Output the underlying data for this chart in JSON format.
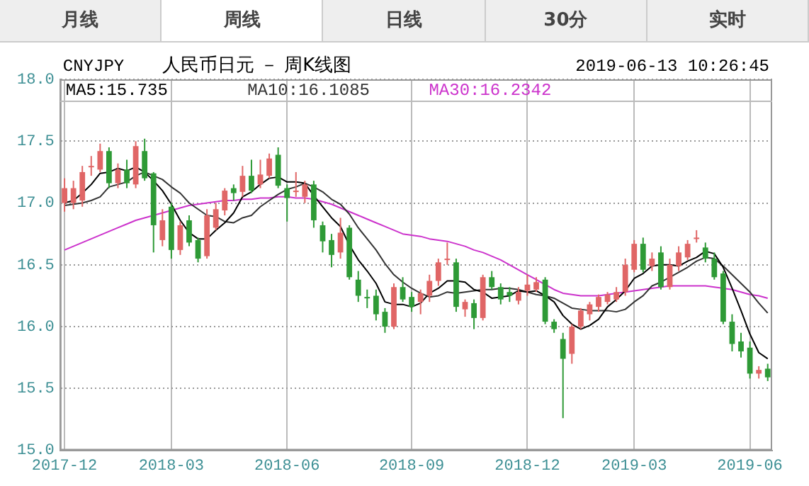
{
  "chart_data": {
    "type": "candlestick",
    "title": "人民币日元 － 周K线图",
    "subtitle": "CNYJPY",
    "annotations": [
      "月线",
      "周线",
      "日线",
      "30分",
      "实时",
      "2019-06-13 10:26:45"
    ],
    "categories": [
      "2017-12",
      null,
      null,
      null,
      null,
      null,
      null,
      null,
      null,
      null,
      null,
      null,
      "2018-03",
      null,
      null,
      null,
      null,
      null,
      null,
      null,
      null,
      null,
      null,
      null,
      null,
      "2018-06",
      null,
      null,
      null,
      null,
      null,
      null,
      null,
      null,
      null,
      null,
      null,
      null,
      null,
      "2018-09",
      null,
      null,
      null,
      null,
      null,
      null,
      null,
      null,
      null,
      null,
      null,
      null,
      "2018-12",
      null,
      null,
      null,
      null,
      null,
      null,
      null,
      null,
      null,
      null,
      null,
      "2019-03",
      null,
      null,
      null,
      null,
      null,
      null,
      null,
      null,
      null,
      null,
      null,
      null,
      "2019-06",
      null,
      null
    ],
    "ohlc": [
      [
        17.0,
        17.2,
        16.93,
        17.12
      ],
      [
        17.0,
        17.18,
        16.95,
        17.12
      ],
      [
        17.02,
        17.3,
        16.97,
        17.25
      ],
      [
        17.3,
        17.38,
        17.22,
        17.3
      ],
      [
        17.27,
        17.48,
        17.25,
        17.42
      ],
      [
        17.42,
        17.45,
        17.12,
        17.16
      ],
      [
        17.16,
        17.32,
        17.12,
        17.27
      ],
      [
        17.27,
        17.35,
        17.12,
        17.16
      ],
      [
        17.15,
        17.5,
        17.12,
        17.46
      ],
      [
        17.42,
        17.52,
        17.18,
        17.2
      ],
      [
        17.24,
        17.25,
        16.6,
        16.82
      ],
      [
        16.7,
        16.95,
        16.65,
        16.86
      ],
      [
        16.97,
        17.0,
        16.55,
        16.62
      ],
      [
        16.62,
        16.85,
        16.58,
        16.82
      ],
      [
        16.86,
        16.9,
        16.65,
        16.68
      ],
      [
        16.7,
        16.72,
        16.52,
        16.55
      ],
      [
        16.57,
        16.95,
        16.55,
        16.9
      ],
      [
        16.8,
        17.0,
        16.78,
        16.95
      ],
      [
        16.94,
        17.12,
        16.9,
        17.1
      ],
      [
        17.12,
        17.15,
        17.02,
        17.08
      ],
      [
        17.09,
        17.3,
        17.05,
        17.22
      ],
      [
        17.22,
        17.35,
        17.08,
        17.1
      ],
      [
        17.15,
        17.35,
        17.12,
        17.23
      ],
      [
        17.22,
        17.4,
        17.2,
        17.36
      ],
      [
        17.39,
        17.45,
        17.12,
        17.14
      ],
      [
        17.12,
        17.15,
        16.85,
        17.04
      ],
      [
        17.1,
        17.25,
        17.05,
        17.1
      ],
      [
        17.05,
        17.18,
        17.0,
        17.15
      ],
      [
        17.15,
        17.18,
        16.8,
        16.86
      ],
      [
        16.82,
        16.85,
        16.6,
        16.69
      ],
      [
        16.7,
        16.75,
        16.48,
        16.58
      ],
      [
        16.6,
        16.88,
        16.55,
        16.76
      ],
      [
        16.8,
        16.82,
        16.38,
        16.4
      ],
      [
        16.38,
        16.45,
        16.2,
        16.25
      ],
      [
        16.24,
        16.3,
        16.15,
        16.24
      ],
      [
        16.25,
        16.3,
        16.05,
        16.1
      ],
      [
        16.12,
        16.15,
        15.95,
        16.0
      ],
      [
        16.0,
        16.35,
        15.98,
        16.32
      ],
      [
        16.32,
        16.4,
        16.2,
        16.22
      ],
      [
        16.24,
        16.28,
        16.12,
        16.16
      ],
      [
        16.2,
        16.3,
        16.1,
        16.27
      ],
      [
        16.25,
        16.42,
        16.2,
        16.37
      ],
      [
        16.37,
        16.55,
        16.33,
        16.52
      ],
      [
        16.55,
        16.68,
        16.5,
        16.55
      ],
      [
        16.52,
        16.55,
        16.12,
        16.16
      ],
      [
        16.14,
        16.22,
        16.08,
        16.2
      ],
      [
        16.19,
        16.22,
        15.98,
        16.07
      ],
      [
        16.07,
        16.42,
        16.05,
        16.4
      ],
      [
        16.4,
        16.45,
        16.3,
        16.32
      ],
      [
        16.32,
        16.35,
        16.18,
        16.22
      ],
      [
        16.28,
        16.32,
        16.2,
        16.25
      ],
      [
        16.21,
        16.32,
        16.18,
        16.28
      ],
      [
        16.29,
        16.42,
        16.25,
        16.34
      ],
      [
        16.3,
        16.4,
        16.28,
        16.36
      ],
      [
        16.38,
        16.4,
        16.02,
        16.04
      ],
      [
        16.04,
        16.06,
        15.95,
        15.98
      ],
      [
        15.9,
        15.95,
        15.26,
        15.74
      ],
      [
        15.78,
        16.02,
        15.7,
        16.0
      ],
      [
        16.0,
        16.15,
        15.98,
        16.13
      ],
      [
        16.1,
        16.2,
        16.05,
        16.18
      ],
      [
        16.16,
        16.26,
        16.12,
        16.24
      ],
      [
        16.2,
        16.28,
        16.18,
        16.26
      ],
      [
        16.22,
        16.32,
        16.2,
        16.28
      ],
      [
        16.28,
        16.55,
        16.25,
        16.5
      ],
      [
        16.46,
        16.7,
        16.44,
        16.67
      ],
      [
        16.67,
        16.72,
        16.44,
        16.46
      ],
      [
        16.49,
        16.6,
        16.45,
        16.55
      ],
      [
        16.6,
        16.65,
        16.3,
        16.32
      ],
      [
        16.32,
        16.55,
        16.3,
        16.5
      ],
      [
        16.49,
        16.65,
        16.45,
        16.6
      ],
      [
        16.56,
        16.7,
        16.54,
        16.67
      ],
      [
        16.72,
        16.78,
        16.68,
        16.72
      ],
      [
        16.64,
        16.68,
        16.52,
        16.55
      ],
      [
        16.55,
        16.6,
        16.38,
        16.4
      ],
      [
        16.43,
        16.45,
        16.02,
        16.04
      ],
      [
        16.04,
        16.1,
        15.8,
        15.86
      ],
      [
        15.88,
        15.95,
        15.75,
        15.8
      ],
      [
        15.83,
        15.88,
        15.58,
        15.62
      ],
      [
        15.62,
        15.68,
        15.58,
        15.65
      ],
      [
        15.66,
        15.7,
        15.56,
        15.59
      ]
    ],
    "colors": [
      "#e06666",
      "#e06666",
      "#e06666",
      "#e06666",
      "#e06666",
      "#2e9a36",
      "#e06666",
      "#2e9a36",
      "#e06666",
      "#2e9a36",
      "#2e9a36",
      "#e06666",
      "#2e9a36",
      "#e06666",
      "#2e9a36",
      "#2e9a36",
      "#e06666",
      "#e06666",
      "#e06666",
      "#2e9a36",
      "#e06666",
      "#2e9a36",
      "#e06666",
      "#e06666",
      "#2e9a36",
      "#2e9a36",
      "#e06666",
      "#e06666",
      "#2e9a36",
      "#2e9a36",
      "#2e9a36",
      "#e06666",
      "#2e9a36",
      "#2e9a36",
      "#2e9a36",
      "#2e9a36",
      "#2e9a36",
      "#e06666",
      "#2e9a36",
      "#2e9a36",
      "#e06666",
      "#e06666",
      "#e06666",
      "#e06666",
      "#2e9a36",
      "#e06666",
      "#2e9a36",
      "#e06666",
      "#2e9a36",
      "#2e9a36",
      "#2e9a36",
      "#e06666",
      "#e06666",
      "#e06666",
      "#2e9a36",
      "#2e9a36",
      "#2e9a36",
      "#e06666",
      "#e06666",
      "#e06666",
      "#e06666",
      "#e06666",
      "#e06666",
      "#e06666",
      "#e06666",
      "#2e9a36",
      "#e06666",
      "#2e9a36",
      "#e06666",
      "#e06666",
      "#e06666",
      "#e06666",
      "#2e9a36",
      "#2e9a36",
      "#2e9a36",
      "#2e9a36",
      "#2e9a36",
      "#2e9a36",
      "#e06666",
      "#2e9a36"
    ],
    "series": [
      {
        "type": "line",
        "name": "MA5:15.735",
        "color": "#000000",
        "values": [
          17.0,
          17.02,
          17.08,
          17.15,
          17.24,
          17.25,
          17.28,
          17.26,
          17.29,
          17.25,
          17.18,
          17.1,
          16.99,
          16.86,
          16.76,
          16.71,
          16.71,
          16.78,
          16.84,
          16.92,
          17.05,
          17.09,
          17.15,
          17.2,
          17.21,
          17.17,
          17.17,
          17.16,
          17.06,
          16.97,
          16.88,
          16.81,
          16.66,
          16.54,
          16.45,
          16.35,
          16.2,
          16.18,
          16.18,
          16.16,
          16.19,
          16.27,
          16.31,
          16.37,
          16.37,
          16.36,
          16.3,
          16.28,
          16.23,
          16.24,
          16.25,
          16.29,
          16.28,
          16.29,
          16.25,
          16.2,
          16.09,
          16.02,
          15.98,
          16.01,
          16.06,
          16.16,
          16.22,
          16.29,
          16.39,
          16.43,
          16.49,
          16.5,
          16.5,
          16.49,
          16.53,
          16.56,
          16.61,
          16.59,
          16.48,
          16.31,
          16.13,
          15.94,
          15.79,
          15.74
        ]
      },
      {
        "type": "line",
        "name": "MA10:16.1085",
        "color": "#333333",
        "values": [
          16.98,
          16.99,
          17.0,
          17.02,
          17.05,
          17.13,
          17.15,
          17.17,
          17.22,
          17.25,
          17.22,
          17.19,
          17.13,
          17.08,
          17.0,
          16.95,
          16.9,
          16.89,
          16.85,
          16.84,
          16.88,
          16.9,
          16.97,
          17.02,
          17.07,
          17.11,
          17.13,
          17.16,
          17.13,
          17.09,
          17.03,
          16.99,
          16.91,
          16.8,
          16.71,
          16.62,
          16.51,
          16.42,
          16.36,
          16.31,
          16.27,
          16.24,
          16.25,
          16.28,
          16.27,
          16.28,
          16.29,
          16.3,
          16.3,
          16.31,
          16.31,
          16.3,
          16.28,
          16.26,
          16.25,
          16.23,
          16.19,
          16.15,
          16.14,
          16.13,
          16.13,
          16.13,
          16.12,
          16.14,
          16.2,
          16.25,
          16.33,
          16.36,
          16.4,
          16.44,
          16.48,
          16.53,
          16.56,
          16.55,
          16.49,
          16.42,
          16.35,
          16.28,
          16.19,
          16.11
        ]
      },
      {
        "type": "line",
        "name": "MA30:16.2342",
        "color": "#cc33cc",
        "values": [
          16.62,
          16.65,
          16.68,
          16.71,
          16.74,
          16.77,
          16.8,
          16.83,
          16.86,
          16.88,
          16.9,
          16.92,
          16.94,
          16.96,
          16.98,
          16.99,
          17.0,
          17.01,
          17.02,
          17.02,
          17.03,
          17.03,
          17.04,
          17.04,
          17.05,
          17.05,
          17.04,
          17.04,
          17.03,
          17.01,
          16.99,
          16.96,
          16.93,
          16.9,
          16.87,
          16.84,
          16.81,
          16.78,
          16.75,
          16.74,
          16.73,
          16.71,
          16.7,
          16.69,
          16.67,
          16.65,
          16.62,
          16.6,
          16.57,
          16.54,
          16.5,
          16.46,
          16.42,
          16.38,
          16.34,
          16.3,
          16.27,
          16.26,
          16.25,
          16.25,
          16.25,
          16.26,
          16.27,
          16.28,
          16.29,
          16.3,
          16.31,
          16.32,
          16.33,
          16.33,
          16.33,
          16.33,
          16.33,
          16.32,
          16.31,
          16.3,
          16.28,
          16.26,
          16.25,
          16.23
        ]
      }
    ],
    "ylim": [
      15,
      18
    ],
    "yticks": [
      {
        "value": 15,
        "label": "15.0"
      },
      {
        "value": 15.5,
        "label": "15.5"
      },
      {
        "value": 16,
        "label": "16.0"
      },
      {
        "value": 16.5,
        "label": "16.5"
      },
      {
        "value": 17,
        "label": "17.0"
      },
      {
        "value": 17.5,
        "label": "17.5"
      },
      {
        "value": 18,
        "label": "18.0"
      }
    ],
    "grid": true,
    "legend": "top left",
    "marker": "none"
  }
}
